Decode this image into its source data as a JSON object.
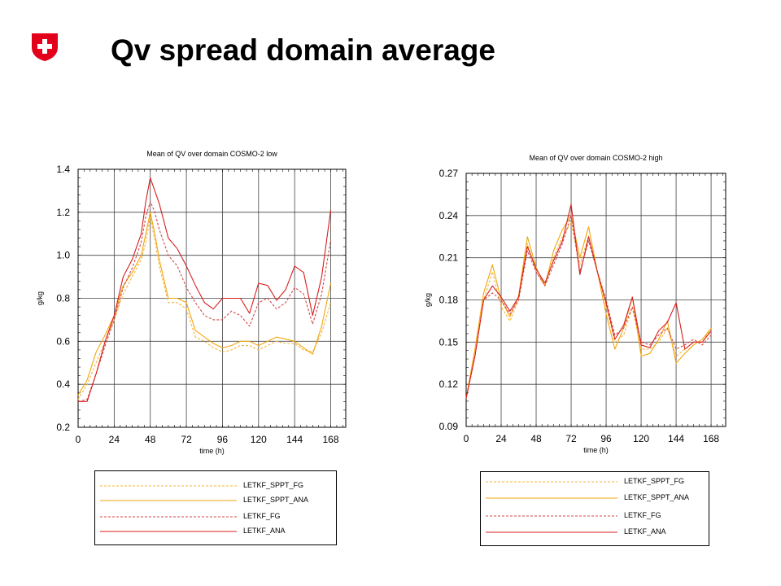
{
  "page": {
    "title": "Qv spread domain average",
    "logo_icon": "swiss-cross-icon",
    "logo_color": "#e3001b"
  },
  "chart_data": [
    {
      "type": "line",
      "title": "Mean of QV over domain COSMO-2 low",
      "xlabel": "time (h)",
      "ylabel": "g/kg",
      "xlim": [
        0,
        178
      ],
      "ylim": [
        0.2,
        1.4
      ],
      "xticks": [
        0,
        24,
        48,
        72,
        96,
        120,
        144,
        168
      ],
      "yticks": [
        0.2,
        0.4,
        0.6,
        0.8,
        1.0,
        1.2,
        1.4
      ],
      "ytick_labels": [
        "0.2",
        "0.4",
        "0.6",
        "0.8",
        "1.0",
        "1.2",
        "1.4"
      ],
      "grid": true,
      "legend_position": "bottom",
      "series": [
        {
          "name": "LETKF_SPPT_FG",
          "color": "#f5b43a",
          "dash": true,
          "points": [
            [
              0,
              0.33
            ],
            [
              6,
              0.4
            ],
            [
              12,
              0.5
            ],
            [
              18,
              0.6
            ],
            [
              24,
              0.7
            ],
            [
              30,
              0.82
            ],
            [
              36,
              0.9
            ],
            [
              42,
              0.98
            ],
            [
              45,
              1.06
            ],
            [
              48,
              1.18
            ],
            [
              51,
              1.07
            ],
            [
              54,
              0.95
            ],
            [
              60,
              0.78
            ],
            [
              66,
              0.78
            ],
            [
              72,
              0.75
            ],
            [
              78,
              0.62
            ],
            [
              84,
              0.6
            ],
            [
              90,
              0.57
            ],
            [
              96,
              0.55
            ],
            [
              102,
              0.56
            ],
            [
              108,
              0.58
            ],
            [
              114,
              0.58
            ],
            [
              120,
              0.56
            ],
            [
              126,
              0.58
            ],
            [
              132,
              0.6
            ],
            [
              138,
              0.59
            ],
            [
              144,
              0.59
            ],
            [
              150,
              0.56
            ],
            [
              156,
              0.55
            ],
            [
              162,
              0.64
            ],
            [
              168,
              0.78
            ]
          ]
        },
        {
          "name": "LETKF_SPPT_ANA",
          "color": "#f2a60e",
          "dash": false,
          "points": [
            [
              0,
              0.35
            ],
            [
              6,
              0.42
            ],
            [
              12,
              0.55
            ],
            [
              18,
              0.63
            ],
            [
              24,
              0.72
            ],
            [
              30,
              0.86
            ],
            [
              36,
              0.92
            ],
            [
              42,
              1.0
            ],
            [
              45,
              1.1
            ],
            [
              48,
              1.2
            ],
            [
              51,
              1.1
            ],
            [
              54,
              0.98
            ],
            [
              60,
              0.8
            ],
            [
              66,
              0.8
            ],
            [
              72,
              0.78
            ],
            [
              78,
              0.65
            ],
            [
              84,
              0.62
            ],
            [
              90,
              0.59
            ],
            [
              96,
              0.57
            ],
            [
              102,
              0.58
            ],
            [
              108,
              0.6
            ],
            [
              114,
              0.6
            ],
            [
              120,
              0.58
            ],
            [
              126,
              0.6
            ],
            [
              132,
              0.62
            ],
            [
              138,
              0.61
            ],
            [
              144,
              0.6
            ],
            [
              150,
              0.57
            ],
            [
              156,
              0.54
            ],
            [
              162,
              0.67
            ],
            [
              168,
              0.87
            ]
          ]
        },
        {
          "name": "LETKF_FG",
          "color": "#d04a4a",
          "dash": true,
          "points": [
            [
              0,
              0.32
            ],
            [
              6,
              0.33
            ],
            [
              12,
              0.45
            ],
            [
              18,
              0.58
            ],
            [
              24,
              0.7
            ],
            [
              30,
              0.85
            ],
            [
              36,
              0.94
            ],
            [
              42,
              1.06
            ],
            [
              45,
              1.18
            ],
            [
              48,
              1.25
            ],
            [
              51,
              1.2
            ],
            [
              54,
              1.12
            ],
            [
              60,
              1.0
            ],
            [
              66,
              0.95
            ],
            [
              72,
              0.85
            ],
            [
              78,
              0.78
            ],
            [
              84,
              0.72
            ],
            [
              90,
              0.7
            ],
            [
              96,
              0.7
            ],
            [
              102,
              0.74
            ],
            [
              108,
              0.72
            ],
            [
              114,
              0.67
            ],
            [
              120,
              0.78
            ],
            [
              126,
              0.8
            ],
            [
              132,
              0.75
            ],
            [
              138,
              0.78
            ],
            [
              144,
              0.85
            ],
            [
              150,
              0.82
            ],
            [
              156,
              0.68
            ],
            [
              162,
              0.82
            ],
            [
              168,
              1.07
            ]
          ]
        },
        {
          "name": "LETKF_ANA",
          "color": "#d81e1e",
          "dash": false,
          "points": [
            [
              0,
              0.32
            ],
            [
              6,
              0.32
            ],
            [
              12,
              0.45
            ],
            [
              18,
              0.6
            ],
            [
              24,
              0.72
            ],
            [
              30,
              0.9
            ],
            [
              36,
              0.98
            ],
            [
              42,
              1.1
            ],
            [
              45,
              1.25
            ],
            [
              48,
              1.36
            ],
            [
              51,
              1.3
            ],
            [
              54,
              1.24
            ],
            [
              60,
              1.08
            ],
            [
              66,
              1.03
            ],
            [
              72,
              0.95
            ],
            [
              78,
              0.86
            ],
            [
              84,
              0.78
            ],
            [
              90,
              0.75
            ],
            [
              96,
              0.8
            ],
            [
              102,
              0.8
            ],
            [
              108,
              0.8
            ],
            [
              114,
              0.73
            ],
            [
              120,
              0.87
            ],
            [
              126,
              0.86
            ],
            [
              132,
              0.79
            ],
            [
              138,
              0.84
            ],
            [
              144,
              0.95
            ],
            [
              150,
              0.92
            ],
            [
              156,
              0.72
            ],
            [
              162,
              0.9
            ],
            [
              168,
              1.21
            ]
          ]
        }
      ]
    },
    {
      "type": "line",
      "title": "Mean of QV over domain COSMO-2 high",
      "xlabel": "time (h)",
      "ylabel": "g/kg",
      "xlim": [
        0,
        178
      ],
      "ylim": [
        0.09,
        0.27
      ],
      "xticks": [
        0,
        24,
        48,
        72,
        96,
        120,
        144,
        168
      ],
      "yticks": [
        0.09,
        0.12,
        0.15,
        0.18,
        0.21,
        0.24,
        0.27
      ],
      "ytick_labels": [
        "0.09",
        "0.12",
        "0.15",
        "0.18",
        "0.21",
        "0.24",
        "0.27"
      ],
      "grid": true,
      "legend_position": "bottom",
      "series": [
        {
          "name": "LETKF_SPPT_FG",
          "color": "#f5b43a",
          "dash": true,
          "points": [
            [
              0,
              0.11
            ],
            [
              6,
              0.14
            ],
            [
              12,
              0.18
            ],
            [
              18,
              0.2
            ],
            [
              24,
              0.175
            ],
            [
              30,
              0.165
            ],
            [
              36,
              0.18
            ],
            [
              42,
              0.22
            ],
            [
              48,
              0.2
            ],
            [
              54,
              0.19
            ],
            [
              60,
              0.21
            ],
            [
              66,
              0.225
            ],
            [
              72,
              0.235
            ],
            [
              78,
              0.205
            ],
            [
              84,
              0.225
            ],
            [
              90,
              0.2
            ],
            [
              96,
              0.175
            ],
            [
              102,
              0.15
            ],
            [
              108,
              0.155
            ],
            [
              114,
              0.175
            ],
            [
              120,
              0.145
            ],
            [
              126,
              0.145
            ],
            [
              132,
              0.15
            ],
            [
              138,
              0.16
            ],
            [
              144,
              0.14
            ],
            [
              150,
              0.145
            ],
            [
              156,
              0.15
            ],
            [
              162,
              0.15
            ],
            [
              168,
              0.16
            ]
          ]
        },
        {
          "name": "LETKF_SPPT_ANA",
          "color": "#f2a60e",
          "dash": false,
          "points": [
            [
              0,
              0.11
            ],
            [
              6,
              0.145
            ],
            [
              12,
              0.185
            ],
            [
              18,
              0.205
            ],
            [
              24,
              0.18
            ],
            [
              30,
              0.168
            ],
            [
              36,
              0.183
            ],
            [
              42,
              0.225
            ],
            [
              48,
              0.203
            ],
            [
              54,
              0.19
            ],
            [
              60,
              0.215
            ],
            [
              66,
              0.23
            ],
            [
              72,
              0.24
            ],
            [
              78,
              0.21
            ],
            [
              84,
              0.232
            ],
            [
              90,
              0.2
            ],
            [
              96,
              0.17
            ],
            [
              102,
              0.145
            ],
            [
              108,
              0.16
            ],
            [
              114,
              0.182
            ],
            [
              120,
              0.14
            ],
            [
              126,
              0.142
            ],
            [
              132,
              0.152
            ],
            [
              138,
              0.165
            ],
            [
              144,
              0.135
            ],
            [
              150,
              0.142
            ],
            [
              156,
              0.148
            ],
            [
              162,
              0.152
            ],
            [
              168,
              0.16
            ]
          ]
        },
        {
          "name": "LETKF_FG",
          "color": "#d04a4a",
          "dash": true,
          "points": [
            [
              0,
              0.11
            ],
            [
              6,
              0.14
            ],
            [
              12,
              0.18
            ],
            [
              18,
              0.185
            ],
            [
              24,
              0.18
            ],
            [
              30,
              0.17
            ],
            [
              36,
              0.18
            ],
            [
              42,
              0.215
            ],
            [
              48,
              0.2
            ],
            [
              54,
              0.19
            ],
            [
              60,
              0.205
            ],
            [
              66,
              0.22
            ],
            [
              72,
              0.24
            ],
            [
              78,
              0.2
            ],
            [
              84,
              0.222
            ],
            [
              90,
              0.2
            ],
            [
              96,
              0.18
            ],
            [
              102,
              0.155
            ],
            [
              108,
              0.16
            ],
            [
              114,
              0.175
            ],
            [
              120,
              0.15
            ],
            [
              126,
              0.148
            ],
            [
              132,
              0.155
            ],
            [
              138,
              0.16
            ],
            [
              144,
              0.145
            ],
            [
              150,
              0.148
            ],
            [
              156,
              0.152
            ],
            [
              162,
              0.148
            ],
            [
              168,
              0.155
            ]
          ]
        },
        {
          "name": "LETKF_ANA",
          "color": "#d81e1e",
          "dash": false,
          "points": [
            [
              0,
              0.11
            ],
            [
              6,
              0.14
            ],
            [
              12,
              0.18
            ],
            [
              18,
              0.19
            ],
            [
              24,
              0.182
            ],
            [
              30,
              0.172
            ],
            [
              36,
              0.182
            ],
            [
              42,
              0.218
            ],
            [
              48,
              0.202
            ],
            [
              54,
              0.192
            ],
            [
              60,
              0.208
            ],
            [
              66,
              0.222
            ],
            [
              72,
              0.248
            ],
            [
              78,
              0.198
            ],
            [
              84,
              0.225
            ],
            [
              90,
              0.2
            ],
            [
              96,
              0.178
            ],
            [
              102,
              0.152
            ],
            [
              108,
              0.162
            ],
            [
              114,
              0.182
            ],
            [
              120,
              0.148
            ],
            [
              126,
              0.146
            ],
            [
              132,
              0.158
            ],
            [
              138,
              0.164
            ],
            [
              144,
              0.178
            ],
            [
              150,
              0.145
            ],
            [
              156,
              0.15
            ],
            [
              162,
              0.15
            ],
            [
              168,
              0.158
            ]
          ]
        }
      ]
    }
  ]
}
